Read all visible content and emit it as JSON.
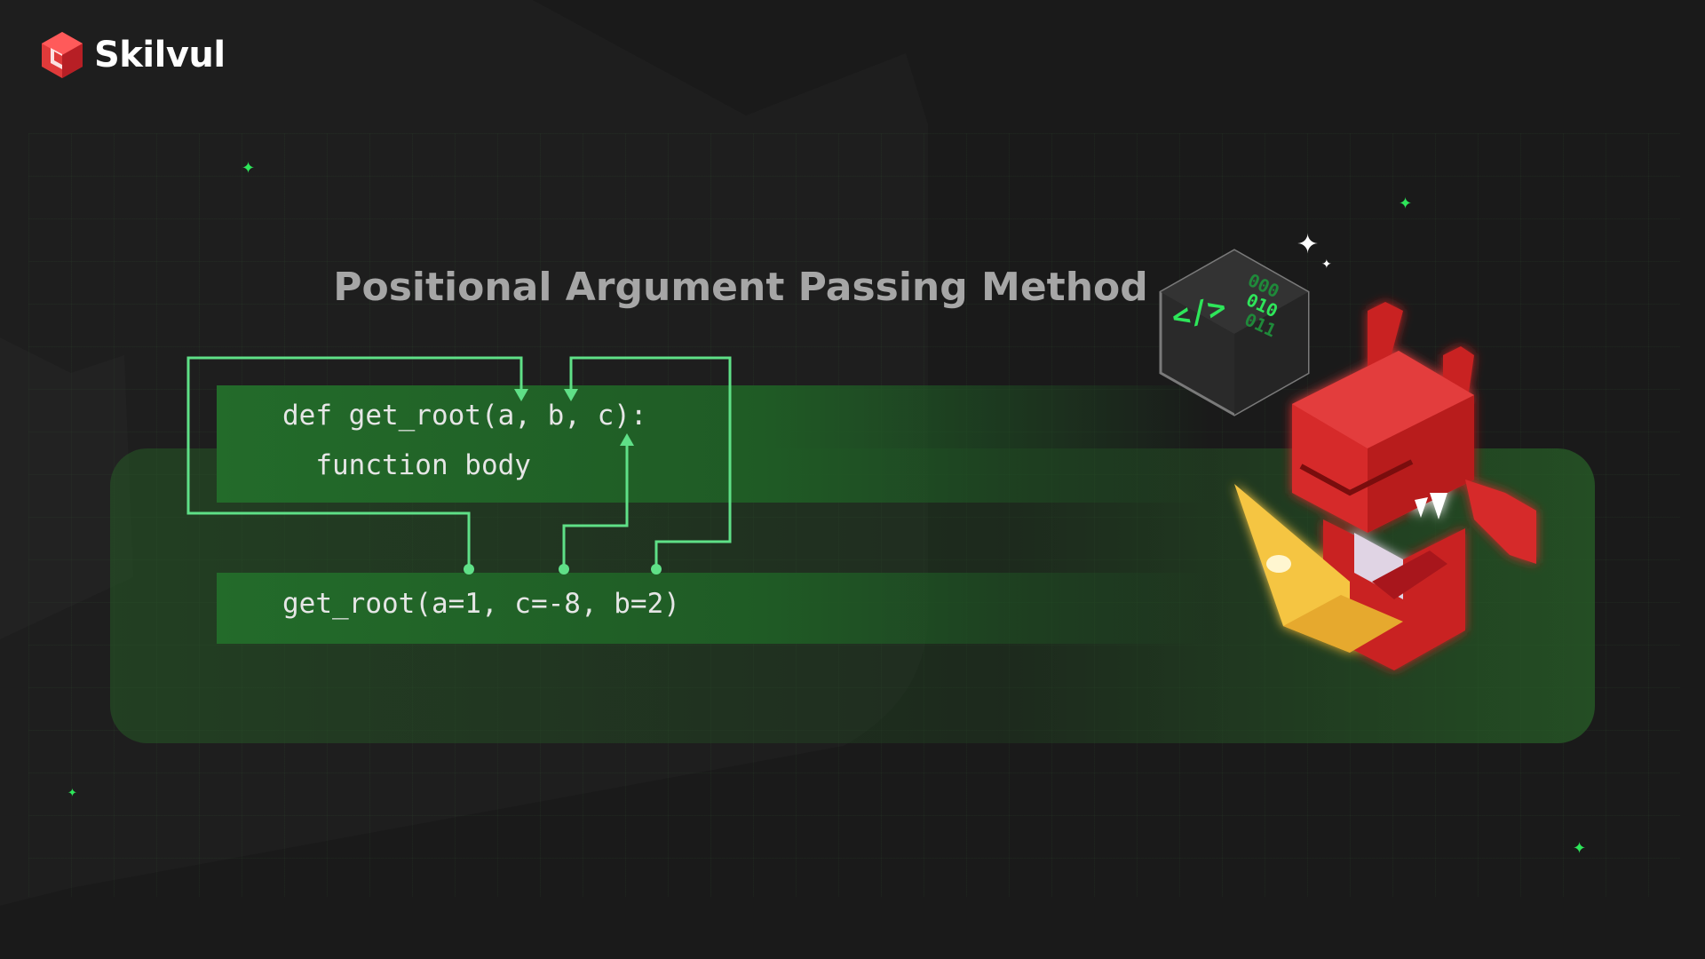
{
  "brand": {
    "name": "Skilvul",
    "logo_icon": "red-cube-icon"
  },
  "title": "Positional Argument Passing Method",
  "code": {
    "definition_line": "def get_root(a, b, c):",
    "body_line": "  function body",
    "call_line": "get_root(a=1, c=-8, b=2)"
  },
  "cube_labels": {
    "left_face": "</>",
    "right_face_rows": [
      "000",
      "010",
      "011"
    ]
  },
  "colors": {
    "background": "#1a1a1a",
    "accent_green": "#5fe087",
    "code_box_green": "#236b2a",
    "title_gray": "#a6a6a6",
    "mascot_red": "#d62b2b",
    "laptop_yellow": "#f0c040"
  },
  "icons": [
    "red-cube-icon",
    "sparkle-icon",
    "code-cube-icon",
    "red-dragon-mascot"
  ]
}
